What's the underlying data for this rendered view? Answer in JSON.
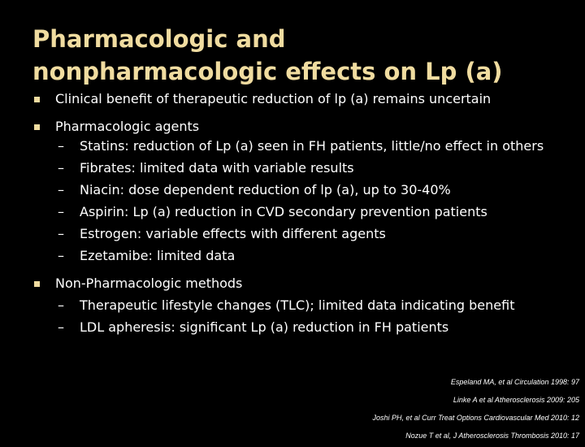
{
  "slide": {
    "title_line1": "Pharmacologic and",
    "title_line2": "nonpharmacologic effects on Lp (a)",
    "colors": {
      "title": "#f0dca0",
      "bullet_marker": "#f0dca0",
      "background": "#000000",
      "text": "#ffffff"
    },
    "bullets": [
      {
        "text": "Clinical benefit of therapeutic reduction of lp (a) remains uncertain"
      },
      {
        "text": "Pharmacologic agents",
        "subs": [
          "Statins: reduction of Lp (a) seen in FH patients, little/no effect in others",
          "Fibrates: limited data with variable results",
          "Niacin: dose dependent reduction of lp (a), up to 30-40%",
          "Aspirin: Lp (a) reduction in CVD secondary prevention patients",
          "Estrogen: variable effects with different agents",
          "Ezetamibe: limited data"
        ]
      },
      {
        "text": "Non-Pharmacologic methods",
        "subs": [
          "Therapeutic lifestyle changes (TLC); limited data indicating benefit",
          "LDL apheresis: significant Lp (a) reduction in FH patients"
        ]
      }
    ],
    "dash": "–",
    "references": [
      "Espeland MA, et al Circulation 1998: 97",
      "Linke A et al Atherosclerosis 2009: 205",
      "Joshi PH, et al Curr Treat Options Cardiovascular Med 2010: 12",
      "Nozue T et al, J Atherosclerosis Thrombosis 2010: 17"
    ]
  }
}
